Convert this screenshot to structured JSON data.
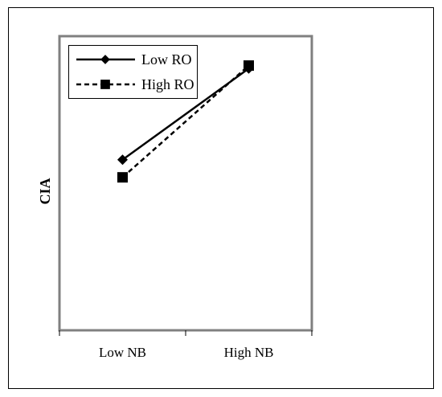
{
  "chart_data": {
    "type": "line",
    "categories": [
      "Low NB",
      "High NB"
    ],
    "series": [
      {
        "name": "Low RO",
        "values": [
          0.58,
          0.89
        ],
        "line_style": "solid",
        "marker": "diamond",
        "color": "#000000"
      },
      {
        "name": "High RO",
        "values": [
          0.52,
          0.9
        ],
        "line_style": "dashed",
        "marker": "square",
        "color": "#000000"
      }
    ],
    "title": "",
    "xlabel": "",
    "ylabel": "CIA",
    "ylim": [
      0,
      1
    ],
    "grid": false,
    "legend_position": "top-left",
    "frame_color": "#808080",
    "outer_border_color": "#000000"
  }
}
